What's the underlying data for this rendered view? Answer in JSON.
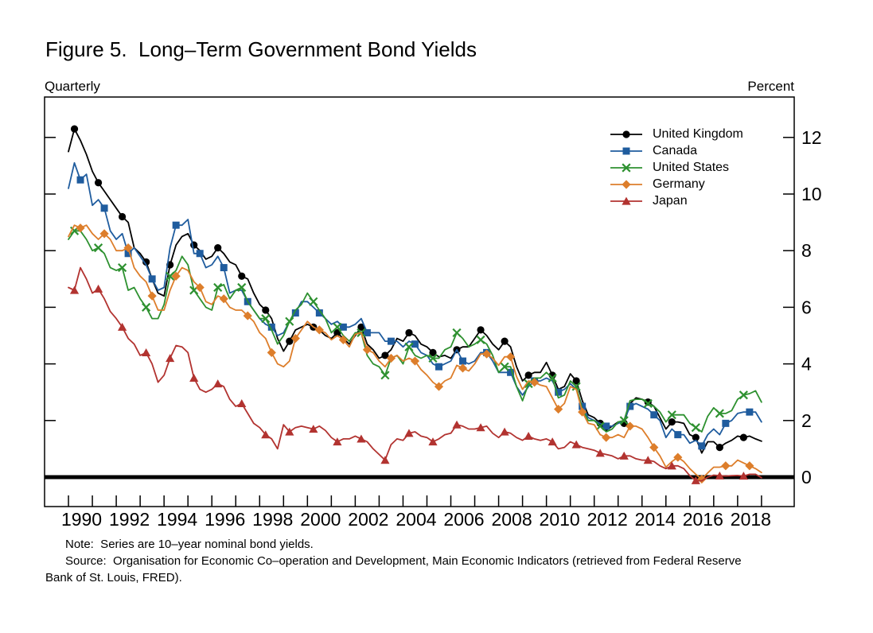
{
  "figure": {
    "title": "Figure 5.  Long–Term Government Bond Yields",
    "frequency_label": "Quarterly",
    "unit_label": "Percent"
  },
  "notes": {
    "line1": "Note:  Series are 10–year nominal bond yields.",
    "line2": "Source:  Organisation for Economic Co–operation and Development, Main Economic Indicators (retrieved from Federal Reserve",
    "line3": "Bank of St. Louis, FRED)."
  },
  "chart_data": {
    "type": "line",
    "title": "Figure 5. Long-Term Government Bond Yields",
    "frequency": "Quarterly",
    "ylabel": "Percent",
    "x_start_year": 1990,
    "x_step_years": 0.25,
    "x_tick_year_first": 1990,
    "x_tick_year_last": 2019,
    "x_label_years": [
      1990,
      1992,
      1994,
      1996,
      1998,
      2000,
      2002,
      2004,
      2006,
      2008,
      2010,
      2012,
      2014,
      2016,
      2018
    ],
    "y_ticks": [
      0,
      2,
      4,
      6,
      8,
      10,
      12
    ],
    "ylim": [
      -1.05,
      13.45
    ],
    "zero_line": true,
    "grid": false,
    "legend_position": "top-right-inside",
    "axis_color": "#000000",
    "series": [
      {
        "name": "United Kingdom",
        "color": "#000000",
        "marker": "circle",
        "marker_every": 4,
        "marker_offset": 1,
        "values": [
          11.5,
          12.3,
          11.9,
          11.4,
          10.8,
          10.4,
          10.1,
          9.8,
          9.5,
          9.2,
          9.0,
          8.1,
          7.9,
          7.6,
          7.0,
          6.5,
          6.4,
          7.5,
          8.2,
          8.5,
          8.6,
          8.2,
          8.0,
          7.7,
          7.8,
          8.1,
          7.9,
          7.6,
          7.5,
          7.1,
          7.0,
          6.5,
          6.1,
          5.9,
          5.6,
          4.9,
          4.45,
          4.8,
          5.2,
          5.3,
          5.4,
          5.3,
          5.2,
          5.0,
          4.9,
          5.1,
          4.9,
          4.7,
          5.0,
          5.3,
          4.7,
          4.5,
          4.2,
          4.3,
          4.5,
          4.9,
          4.8,
          5.1,
          5.0,
          4.7,
          4.6,
          4.4,
          4.25,
          4.3,
          4.2,
          4.5,
          4.6,
          4.6,
          4.9,
          5.2,
          5.0,
          4.7,
          4.5,
          4.8,
          4.6,
          3.9,
          3.4,
          3.6,
          3.7,
          3.7,
          4.05,
          3.6,
          3.1,
          3.2,
          3.65,
          3.4,
          2.7,
          2.2,
          2.1,
          1.9,
          1.65,
          1.8,
          1.95,
          1.9,
          2.6,
          2.8,
          2.75,
          2.65,
          2.5,
          2.1,
          1.7,
          1.95,
          1.95,
          1.9,
          1.5,
          1.4,
          0.85,
          1.25,
          1.25,
          1.05,
          1.2,
          1.3,
          1.45,
          1.4,
          1.45,
          1.35,
          1.27
        ]
      },
      {
        "name": "Canada",
        "color": "#1f5c9e",
        "marker": "square",
        "marker_every": 4,
        "marker_offset": 2,
        "values": [
          10.2,
          11.1,
          10.5,
          10.7,
          9.6,
          9.8,
          9.5,
          8.7,
          8.4,
          8.6,
          7.9,
          8.1,
          7.8,
          7.5,
          7.0,
          6.6,
          6.7,
          8.1,
          8.9,
          8.9,
          9.1,
          7.9,
          7.9,
          7.4,
          7.5,
          7.8,
          7.4,
          6.5,
          6.6,
          6.6,
          6.2,
          5.9,
          5.6,
          5.4,
          5.3,
          5.0,
          5.1,
          5.5,
          5.8,
          6.2,
          6.2,
          6.0,
          5.8,
          5.6,
          5.4,
          5.5,
          5.3,
          5.3,
          5.4,
          5.6,
          5.1,
          5.1,
          5.1,
          4.8,
          4.8,
          4.8,
          4.6,
          4.8,
          4.7,
          4.4,
          4.3,
          4.0,
          3.9,
          4.0,
          4.1,
          4.5,
          4.1,
          4.0,
          4.1,
          4.4,
          4.4,
          4.1,
          3.7,
          3.7,
          3.7,
          3.2,
          2.9,
          3.2,
          3.4,
          3.4,
          3.5,
          3.4,
          3.0,
          3.1,
          3.3,
          3.1,
          2.5,
          2.1,
          2.0,
          1.9,
          1.8,
          1.8,
          1.9,
          2.0,
          2.5,
          2.6,
          2.5,
          2.4,
          2.2,
          2.0,
          1.4,
          1.7,
          1.5,
          1.5,
          1.2,
          1.3,
          1.1,
          1.5,
          1.7,
          1.5,
          1.9,
          2.0,
          2.25,
          2.3,
          2.3,
          2.3,
          1.95
        ]
      },
      {
        "name": "United States",
        "color": "#2e9130",
        "marker": "x",
        "marker_every": 4,
        "marker_offset": 1,
        "values": [
          8.4,
          8.7,
          8.7,
          8.4,
          8.0,
          8.1,
          7.9,
          7.4,
          7.3,
          7.4,
          6.6,
          6.7,
          6.3,
          6.0,
          5.6,
          5.6,
          6.1,
          7.1,
          7.3,
          7.8,
          7.5,
          6.6,
          6.3,
          6.0,
          5.9,
          6.7,
          6.8,
          6.3,
          6.6,
          6.7,
          6.2,
          5.9,
          5.6,
          5.6,
          5.2,
          4.7,
          5.0,
          5.5,
          5.9,
          6.1,
          6.5,
          6.2,
          5.9,
          5.6,
          5.1,
          5.3,
          5.0,
          4.8,
          5.1,
          5.1,
          4.3,
          4.0,
          3.9,
          3.6,
          4.2,
          4.3,
          4.0,
          4.6,
          4.3,
          4.2,
          4.3,
          4.2,
          4.2,
          4.5,
          4.6,
          5.1,
          4.9,
          4.6,
          4.7,
          4.85,
          4.7,
          4.3,
          3.7,
          3.9,
          3.9,
          3.2,
          2.7,
          3.3,
          3.5,
          3.5,
          3.7,
          3.5,
          2.8,
          2.9,
          3.4,
          3.2,
          2.4,
          2.0,
          2.0,
          1.8,
          1.6,
          1.7,
          1.95,
          2.0,
          2.7,
          2.75,
          2.75,
          2.6,
          2.5,
          2.3,
          1.95,
          2.2,
          2.2,
          2.2,
          1.9,
          1.75,
          1.6,
          2.15,
          2.45,
          2.25,
          2.25,
          2.35,
          2.75,
          2.9,
          2.95,
          3.05,
          2.65
        ]
      },
      {
        "name": "Germany",
        "color": "#dd7e2b",
        "marker": "diamond",
        "marker_every": 4,
        "marker_offset": 2,
        "values": [
          8.5,
          8.9,
          8.8,
          8.9,
          8.6,
          8.4,
          8.6,
          8.4,
          8.0,
          8.0,
          8.1,
          7.4,
          7.1,
          6.9,
          6.4,
          5.9,
          5.9,
          6.6,
          7.1,
          7.4,
          7.3,
          6.9,
          6.7,
          6.2,
          6.1,
          6.4,
          6.3,
          6.0,
          5.9,
          5.9,
          5.7,
          5.5,
          5.1,
          4.9,
          4.4,
          4.0,
          3.9,
          4.1,
          4.9,
          5.2,
          5.5,
          5.3,
          5.2,
          5.1,
          4.85,
          5.0,
          4.85,
          4.6,
          5.05,
          5.1,
          4.5,
          4.4,
          4.1,
          3.9,
          4.2,
          4.3,
          4.1,
          4.2,
          4.1,
          3.8,
          3.6,
          3.35,
          3.2,
          3.4,
          3.5,
          3.95,
          3.85,
          3.75,
          4.0,
          4.35,
          4.35,
          4.2,
          3.95,
          4.25,
          4.25,
          3.55,
          3.1,
          3.4,
          3.35,
          3.25,
          3.2,
          2.8,
          2.4,
          2.6,
          3.2,
          3.1,
          2.3,
          1.9,
          1.85,
          1.5,
          1.4,
          1.4,
          1.5,
          1.4,
          1.8,
          1.8,
          1.7,
          1.4,
          1.05,
          0.75,
          0.35,
          0.55,
          0.7,
          0.55,
          0.3,
          0.1,
          -0.07,
          0.15,
          0.35,
          0.35,
          0.4,
          0.4,
          0.6,
          0.5,
          0.4,
          0.3,
          0.16
        ]
      },
      {
        "name": "Japan",
        "color": "#b23330",
        "marker": "triangle",
        "marker_every": 4,
        "marker_offset": 1,
        "values": [
          6.7,
          6.6,
          7.4,
          7.0,
          6.5,
          6.65,
          6.3,
          5.85,
          5.6,
          5.3,
          4.9,
          4.7,
          4.3,
          4.4,
          4.0,
          3.35,
          3.6,
          4.2,
          4.65,
          4.6,
          4.4,
          3.5,
          3.1,
          3.0,
          3.1,
          3.3,
          3.2,
          2.75,
          2.5,
          2.6,
          2.25,
          1.9,
          1.75,
          1.5,
          1.35,
          1.0,
          1.85,
          1.6,
          1.75,
          1.8,
          1.75,
          1.7,
          1.8,
          1.65,
          1.4,
          1.25,
          1.35,
          1.35,
          1.45,
          1.35,
          1.25,
          1.0,
          0.8,
          0.6,
          1.15,
          1.35,
          1.3,
          1.55,
          1.6,
          1.45,
          1.4,
          1.25,
          1.35,
          1.5,
          1.55,
          1.85,
          1.8,
          1.7,
          1.7,
          1.75,
          1.8,
          1.55,
          1.4,
          1.6,
          1.55,
          1.4,
          1.3,
          1.45,
          1.35,
          1.3,
          1.35,
          1.25,
          1.0,
          1.05,
          1.25,
          1.15,
          1.05,
          1.0,
          0.95,
          0.85,
          0.8,
          0.75,
          0.65,
          0.75,
          0.75,
          0.65,
          0.6,
          0.6,
          0.55,
          0.4,
          0.3,
          0.4,
          0.4,
          0.3,
          0.05,
          -0.12,
          -0.13,
          0.0,
          0.07,
          0.05,
          0.04,
          0.05,
          0.06,
          0.04,
          0.1,
          0.1,
          -0.02
        ]
      }
    ]
  }
}
